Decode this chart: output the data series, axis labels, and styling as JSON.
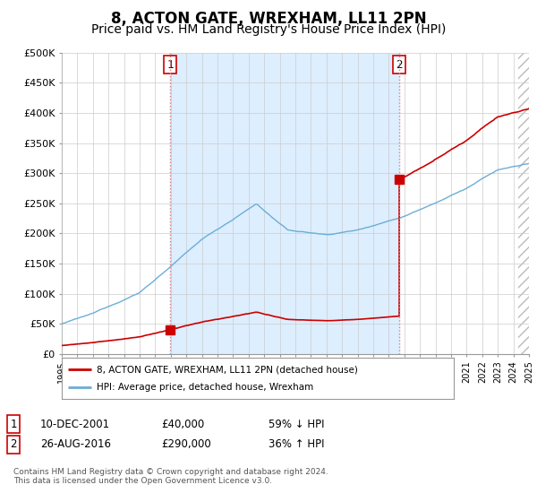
{
  "title": "8, ACTON GATE, WREXHAM, LL11 2PN",
  "subtitle": "Price paid vs. HM Land Registry's House Price Index (HPI)",
  "title_fontsize": 12,
  "subtitle_fontsize": 10,
  "ylim": [
    0,
    500000
  ],
  "yticks": [
    0,
    50000,
    100000,
    150000,
    200000,
    250000,
    300000,
    350000,
    400000,
    450000,
    500000
  ],
  "ytick_labels": [
    "£0",
    "£50K",
    "£100K",
    "£150K",
    "£200K",
    "£250K",
    "£300K",
    "£350K",
    "£400K",
    "£450K",
    "£500K"
  ],
  "hpi_color": "#6baed6",
  "price_color": "#cc0000",
  "vline_color": "#e88080",
  "shade_color": "#ddeeff",
  "background_color": "#ffffff",
  "grid_color": "#cccccc",
  "transaction1_date": 2001.95,
  "transaction1_price": 40000,
  "transaction2_date": 2016.67,
  "transaction2_price": 290000,
  "legend_label_price": "8, ACTON GATE, WREXHAM, LL11 2PN (detached house)",
  "legend_label_hpi": "HPI: Average price, detached house, Wrexham",
  "table_row1": [
    "1",
    "10-DEC-2001",
    "£40,000",
    "59% ↓ HPI"
  ],
  "table_row2": [
    "2",
    "26-AUG-2016",
    "£290,000",
    "36% ↑ HPI"
  ],
  "footnote": "Contains HM Land Registry data © Crown copyright and database right 2024.\nThis data is licensed under the Open Government Licence v3.0.",
  "xmin": 1995,
  "xmax": 2025
}
